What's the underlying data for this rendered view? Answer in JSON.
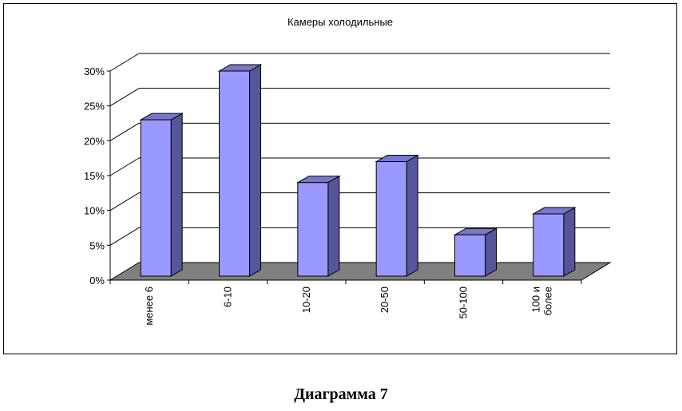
{
  "caption": "Диаграмма 7",
  "chart_data": {
    "type": "bar",
    "title": "Камеры холодильные",
    "categories": [
      [
        "менее 6"
      ],
      [
        "6-10"
      ],
      [
        "10-20"
      ],
      [
        "20-50"
      ],
      [
        "50-100"
      ],
      [
        "100 и",
        "более"
      ]
    ],
    "values": [
      23,
      30,
      14,
      17,
      6.5,
      9.5
    ],
    "yticks": [
      "0%",
      "5%",
      "10%",
      "15%",
      "20%",
      "25%",
      "30%"
    ],
    "ylim": [
      0,
      30
    ],
    "xlabel": "",
    "ylabel": "",
    "grid": true,
    "legend": "none",
    "three_d": true,
    "colors": {
      "bar_front": "#9999ff",
      "bar_side": "#55559a",
      "bar_top": "#7777cc",
      "floor": "#808080",
      "gridline": "#000000"
    }
  }
}
